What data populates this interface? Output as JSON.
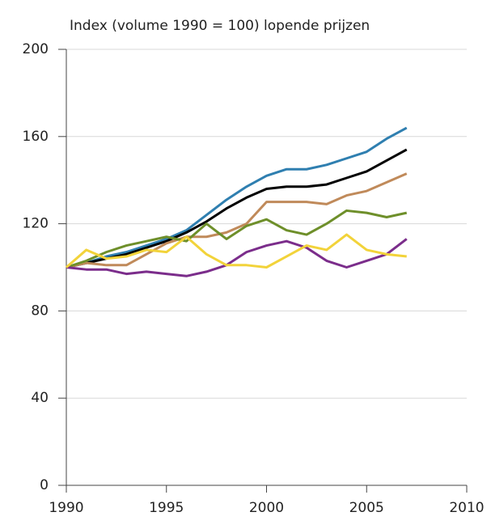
{
  "chart_data": {
    "type": "line",
    "title": "Index (volume 1990 = 100) lopende prijzen",
    "x": [
      1990,
      1991,
      1992,
      1993,
      1994,
      1995,
      1996,
      1997,
      1998,
      1999,
      2000,
      2001,
      2002,
      2003,
      2004,
      2005,
      2006,
      2007
    ],
    "series": [
      {
        "color": "#2f7fb0",
        "values": [
          100,
          102,
          105,
          107,
          110,
          113,
          117,
          124,
          131,
          137,
          142,
          145,
          145,
          147,
          150,
          153,
          159,
          164
        ]
      },
      {
        "color": "#000000",
        "values": [
          100,
          102,
          104,
          106,
          109,
          112,
          116,
          121,
          127,
          132,
          136,
          137,
          137,
          138,
          141,
          144,
          149,
          154
        ]
      },
      {
        "color": "#c08a5a",
        "values": [
          100,
          102,
          101,
          101,
          106,
          111,
          114,
          114,
          116,
          120,
          130,
          130,
          130,
          129,
          133,
          135,
          139,
          143
        ]
      },
      {
        "color": "#6e8f2a",
        "values": [
          100,
          103,
          107,
          110,
          112,
          114,
          112,
          120,
          113,
          119,
          122,
          117,
          115,
          120,
          126,
          125,
          123,
          125
        ]
      },
      {
        "color": "#7b2d8b",
        "values": [
          100,
          99,
          99,
          97,
          98,
          97,
          96,
          98,
          101,
          107,
          110,
          112,
          109,
          103,
          100,
          103,
          106,
          113
        ]
      },
      {
        "color": "#f2d33a",
        "values": [
          100,
          108,
          104,
          105,
          108,
          107,
          114,
          106,
          101,
          101,
          100,
          105,
          110,
          108,
          115,
          108,
          106,
          105
        ]
      }
    ],
    "xlim": [
      1990,
      2010
    ],
    "xticks": [
      1990,
      1995,
      2000,
      2005,
      2010
    ],
    "ylim": [
      0,
      200
    ],
    "yticks": [
      0,
      40,
      80,
      120,
      160,
      200
    ],
    "grid": true
  }
}
